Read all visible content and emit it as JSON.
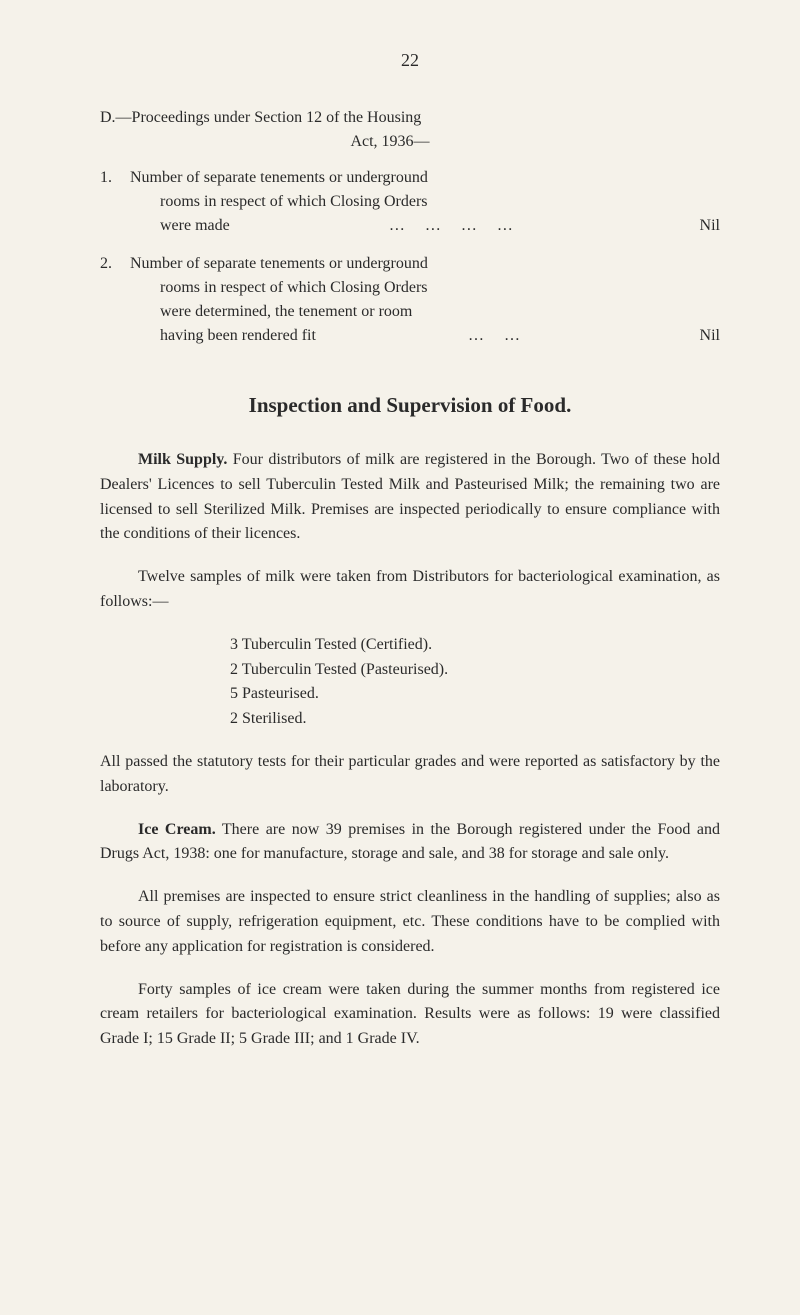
{
  "page_number": "22",
  "section_d": {
    "heading_line1": "D.—Proceedings under Section 12 of the Housing",
    "heading_line2": "Act, 1936—",
    "item1": {
      "num": "1.",
      "line1": "Number of separate tenements or underground",
      "line2": "rooms in respect of which Closing Orders",
      "line3": "were made",
      "dots": "…        …        …        …",
      "value": "Nil"
    },
    "item2": {
      "num": "2.",
      "line1": "Number of separate tenements or underground",
      "line2": "rooms in respect of which Closing Orders",
      "line3": "were determined, the tenement or room",
      "line4": "having been rendered fit",
      "dots": "…        …",
      "value": "Nil"
    }
  },
  "inspection_heading": "Inspection and Supervision of Food.",
  "milk_supply": {
    "label": "Milk Supply.",
    "text": "  Four distributors of milk are registered in the Borough. Two of these hold Dealers' Licences to sell Tuberculin Tested Milk and Pasteurised Milk; the remaining two are licensed to sell Sterilized Milk. Premises are inspected periodically to ensure compliance with the conditions of their licences."
  },
  "twelve_samples": "Twelve samples of milk were taken from Distributors for bacteriological examination, as follows:—",
  "milk_list": {
    "item1": "3  Tuberculin Tested (Certified).",
    "item2": "2  Tuberculin Tested (Pasteurised).",
    "item3": "5  Pasteurised.",
    "item4": "2  Sterilised."
  },
  "all_passed": "All passed the statutory tests for their particular grades and were reported as satisfactory by the laboratory.",
  "ice_cream": {
    "label": "Ice Cream.",
    "text": "  There are now 39 premises in the Borough registered under the Food and Drugs Act, 1938: one for manufacture, storage and sale, and 38 for storage and sale only."
  },
  "all_premises": "All premises are inspected to ensure strict cleanliness in the handling of supplies; also as to source of supply, refrigeration equipment, etc. These conditions have to be complied with before any application for registration is considered.",
  "forty_samples": "Forty samples of ice cream were taken during the summer months from registered ice cream retailers for bacteriological examination. Results were as follows: 19 were classified Grade I; 15 Grade II; 5 Grade III; and 1 Grade IV."
}
